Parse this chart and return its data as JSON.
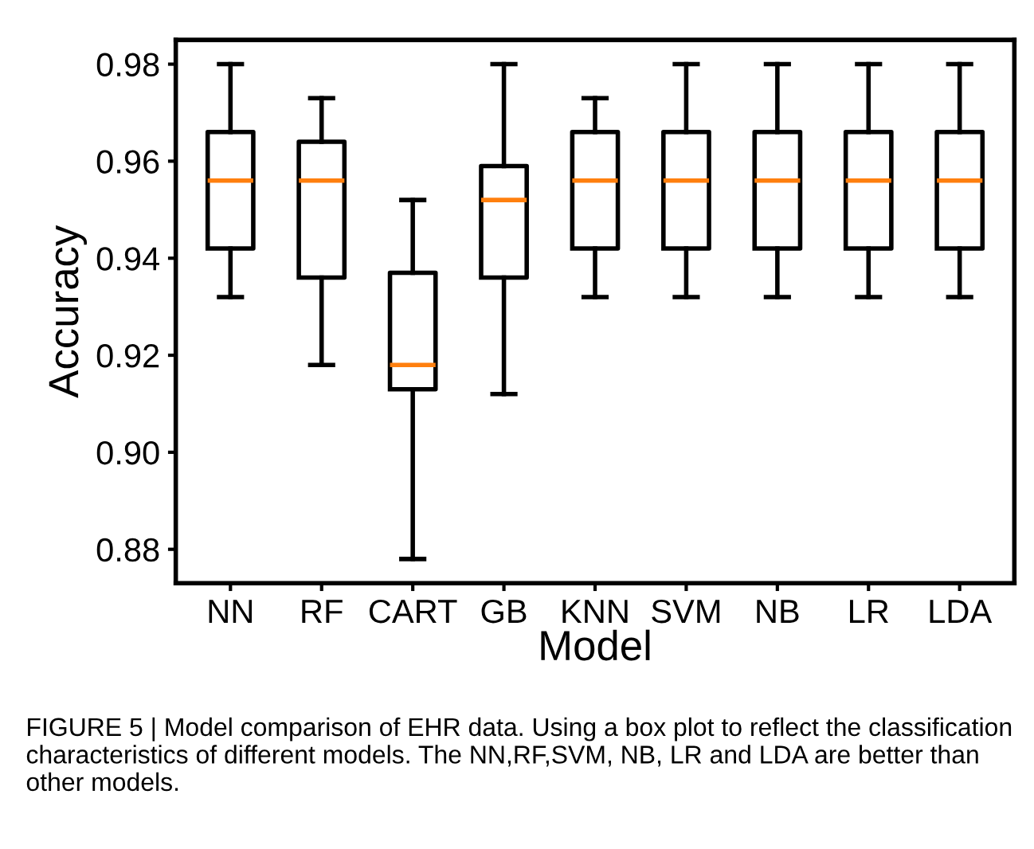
{
  "chart_data": {
    "type": "box",
    "xlabel": "Model",
    "ylabel": "Accuracy",
    "categories": [
      "NN",
      "RF",
      "CART",
      "GB",
      "KNN",
      "SVM",
      "NB",
      "LR",
      "LDA"
    ],
    "boxes": [
      {
        "low": 0.932,
        "q1": 0.942,
        "median": 0.956,
        "q3": 0.966,
        "high": 0.98
      },
      {
        "low": 0.918,
        "q1": 0.936,
        "median": 0.956,
        "q3": 0.964,
        "high": 0.973
      },
      {
        "low": 0.878,
        "q1": 0.913,
        "median": 0.918,
        "q3": 0.937,
        "high": 0.952
      },
      {
        "low": 0.912,
        "q1": 0.936,
        "median": 0.952,
        "q3": 0.959,
        "high": 0.98
      },
      {
        "low": 0.932,
        "q1": 0.942,
        "median": 0.956,
        "q3": 0.966,
        "high": 0.973
      },
      {
        "low": 0.932,
        "q1": 0.942,
        "median": 0.956,
        "q3": 0.966,
        "high": 0.98
      },
      {
        "low": 0.932,
        "q1": 0.942,
        "median": 0.956,
        "q3": 0.966,
        "high": 0.98
      },
      {
        "low": 0.932,
        "q1": 0.942,
        "median": 0.956,
        "q3": 0.966,
        "high": 0.98
      },
      {
        "low": 0.932,
        "q1": 0.942,
        "median": 0.956,
        "q3": 0.966,
        "high": 0.98
      }
    ],
    "color": "#000000",
    "ylim": [
      0.873,
      0.985
    ],
    "yticks": [
      {
        "value": 0.88,
        "label": "0.88"
      },
      {
        "value": 0.9,
        "label": "0.90"
      },
      {
        "value": 0.92,
        "label": "0.92"
      },
      {
        "value": 0.94,
        "label": "0.94"
      },
      {
        "value": 0.96,
        "label": "0.96"
      },
      {
        "value": 0.98,
        "label": "0.98"
      }
    ],
    "grid": false,
    "annotations": [
      "FIGURE 5 | Model comparison of EHR data. Using a box plot to reflect the classification characteristics of different models. The NN,RF,SVM, NB, LR and LDA are better than other models."
    ]
  }
}
